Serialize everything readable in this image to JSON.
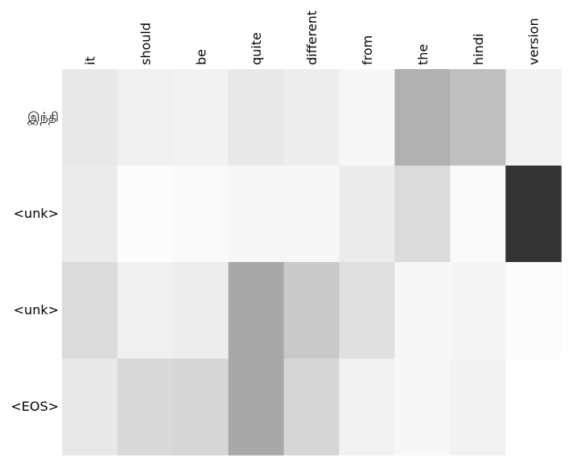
{
  "chart_data": {
    "type": "heatmap",
    "x_labels": [
      "it",
      "should",
      "be",
      "quite",
      "different",
      "from",
      "the",
      "hindi",
      "version"
    ],
    "y_labels": [
      "இந்தி",
      "<unk>",
      "<unk>",
      "<EOS>"
    ],
    "values": [
      [
        0.09,
        0.06,
        0.05,
        0.09,
        0.07,
        0.03,
        0.31,
        0.25,
        0.05
      ],
      [
        0.08,
        0.01,
        0.02,
        0.03,
        0.03,
        0.08,
        0.14,
        0.02,
        0.8
      ],
      [
        0.14,
        0.06,
        0.07,
        0.34,
        0.21,
        0.12,
        0.03,
        0.04,
        0.01
      ],
      [
        0.09,
        0.15,
        0.16,
        0.34,
        0.16,
        0.05,
        0.03,
        0.05,
        0.0
      ]
    ],
    "colormap": "greys",
    "grid": false,
    "title": "",
    "xlabel": "",
    "ylabel": ""
  }
}
